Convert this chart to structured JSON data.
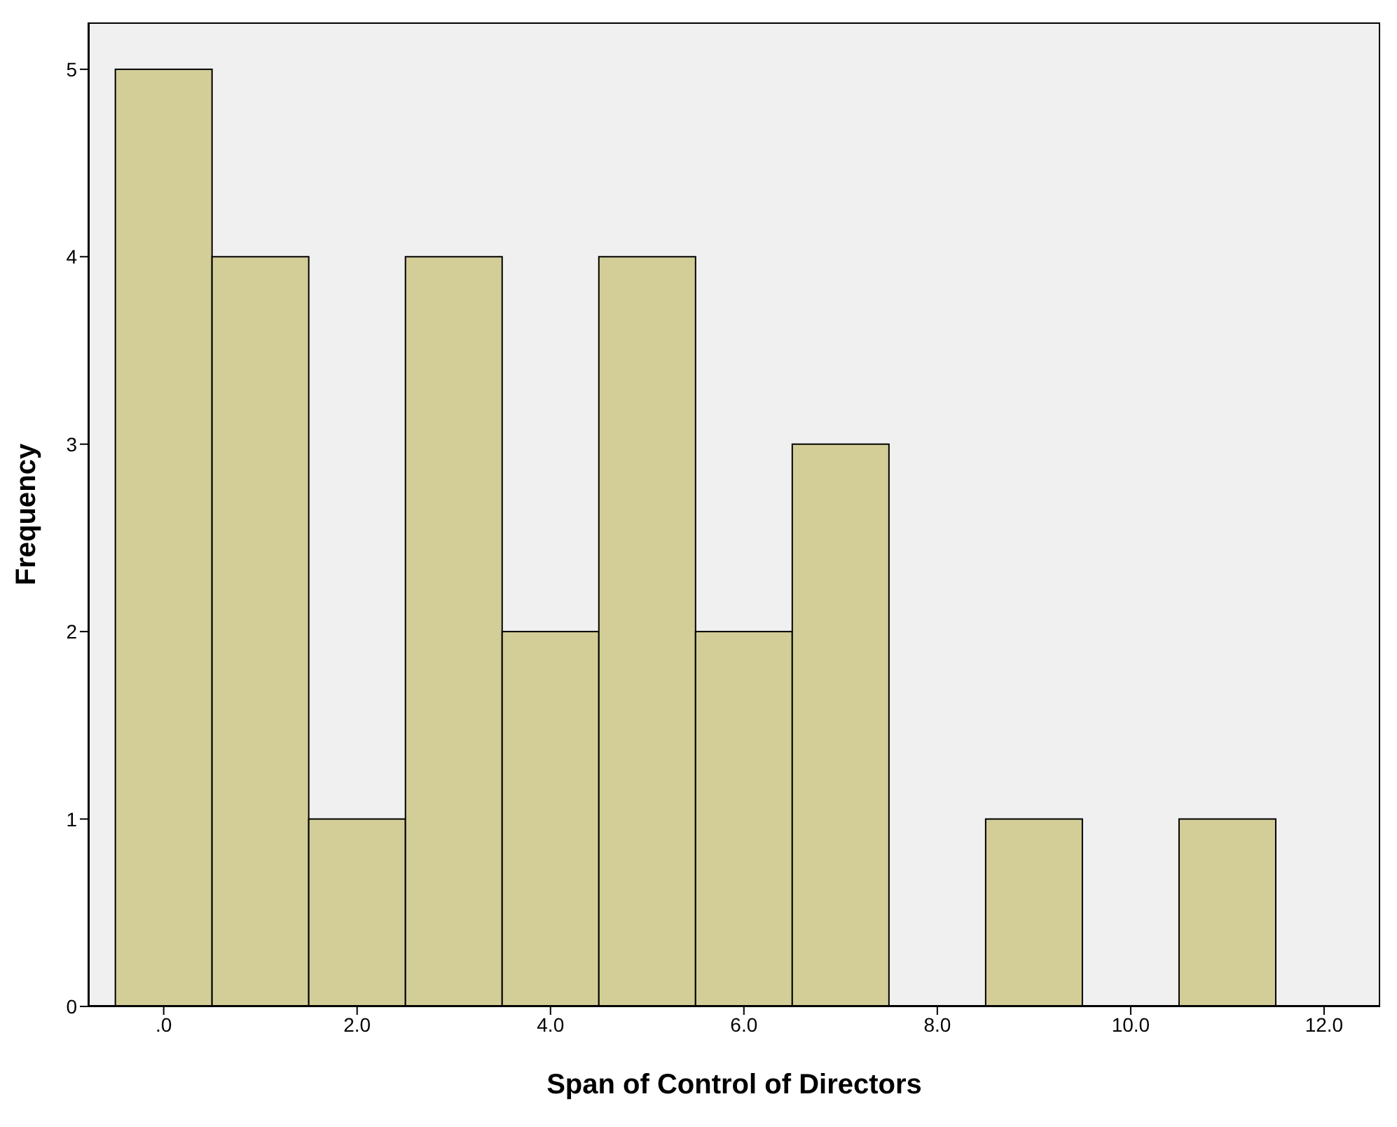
{
  "chart_data": {
    "type": "histogram",
    "xlabel": "Span of Control of Directors",
    "ylabel": "Frequency",
    "bins": [
      -0.5,
      0.5,
      1.5,
      2.5,
      3.5,
      4.5,
      5.5,
      6.5,
      7.5,
      8.5,
      9.5,
      10.5,
      11.5
    ],
    "values": [
      5,
      4,
      1,
      4,
      2,
      4,
      2,
      3,
      0,
      1,
      0,
      1
    ],
    "color": "#d3ce97",
    "xlim": [
      -0.78,
      12.58
    ],
    "xticks": [
      {
        "value": 0,
        "label": ".0"
      },
      {
        "value": 2,
        "label": "2.0"
      },
      {
        "value": 4,
        "label": "4.0"
      },
      {
        "value": 6,
        "label": "6.0"
      },
      {
        "value": 8,
        "label": "8.0"
      },
      {
        "value": 10,
        "label": "10.0"
      },
      {
        "value": 12,
        "label": "12.0"
      }
    ],
    "ylim": [
      0,
      5.25
    ],
    "yticks": [
      0,
      1,
      2,
      3,
      4,
      5
    ],
    "grid": false
  }
}
